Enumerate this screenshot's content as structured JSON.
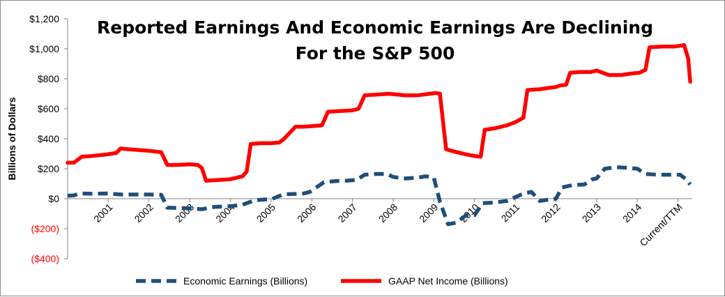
{
  "chart_data": {
    "type": "line",
    "title_lines": [
      "Reported Earnings And Economic Earnings Are Declining",
      "For the S&P 500"
    ],
    "ylabel": "Billions of Dollars",
    "xlabel": "",
    "ylim": [
      -400,
      1200
    ],
    "y_ticks": [
      {
        "value": 1200,
        "label": "$1,200"
      },
      {
        "value": 1000,
        "label": "$1,000"
      },
      {
        "value": 800,
        "label": "$800"
      },
      {
        "value": 600,
        "label": "$600"
      },
      {
        "value": 400,
        "label": "$400"
      },
      {
        "value": 200,
        "label": "$200"
      },
      {
        "value": 0,
        "label": "$0"
      },
      {
        "value": -200,
        "label": "($200)"
      },
      {
        "value": -400,
        "label": "($400)"
      }
    ],
    "negative_tick_color": "#ff0000",
    "positive_tick_color": "#000000",
    "xlim": [
      2000.0,
      2015.35
    ],
    "x_ticks": [
      {
        "value": 2001.0,
        "label": "2001"
      },
      {
        "value": 2002.0,
        "label": "2002"
      },
      {
        "value": 2003.0,
        "label": "2003"
      },
      {
        "value": 2004.0,
        "label": "2004"
      },
      {
        "value": 2005.0,
        "label": "2005"
      },
      {
        "value": 2006.0,
        "label": "2006"
      },
      {
        "value": 2007.0,
        "label": "2007"
      },
      {
        "value": 2008.0,
        "label": "2008"
      },
      {
        "value": 2009.0,
        "label": "2009"
      },
      {
        "value": 2010.0,
        "label": "2010"
      },
      {
        "value": 2011.0,
        "label": "2011"
      },
      {
        "value": 2012.0,
        "label": "2012"
      },
      {
        "value": 2013.0,
        "label": "2013"
      },
      {
        "value": 2014.0,
        "label": "2014"
      },
      {
        "value": 2015.0,
        "label": "Current/TTM"
      }
    ],
    "grid": false,
    "legend_position": "bottom",
    "series": [
      {
        "name": "Economic Earnings (Billions)",
        "color": "#1f4e79",
        "style": "dashed",
        "x": [
          2000.0,
          2000.15,
          2000.3,
          2000.6,
          2001.0,
          2001.3,
          2001.7,
          2002.0,
          2002.3,
          2002.45,
          2002.7,
          2003.0,
          2003.3,
          2003.6,
          2004.0,
          2004.3,
          2004.6,
          2004.85,
          2005.0,
          2005.3,
          2005.6,
          2005.8,
          2005.95,
          2006.3,
          2006.6,
          2006.85,
          2007.1,
          2007.3,
          2007.6,
          2007.85,
          2008.0,
          2008.3,
          2008.6,
          2008.8,
          2009.0,
          2009.15,
          2009.35,
          2009.55,
          2009.8,
          2010.0,
          2010.2,
          2010.5,
          2010.8,
          2011.0,
          2011.2,
          2011.4,
          2011.6,
          2011.85,
          2012.0,
          2012.15,
          2012.4,
          2012.7,
          2012.9,
          2013.0,
          2013.2,
          2013.5,
          2013.8,
          2014.0,
          2014.2,
          2014.5,
          2014.8,
          2015.05,
          2015.2,
          2015.3
        ],
        "values": [
          20,
          22,
          35,
          33,
          35,
          28,
          28,
          28,
          26,
          -60,
          -62,
          -65,
          -70,
          -55,
          -50,
          -40,
          -10,
          -5,
          -5,
          30,
          32,
          35,
          45,
          110,
          118,
          120,
          125,
          160,
          165,
          165,
          145,
          135,
          140,
          150,
          140,
          -20,
          -170,
          -160,
          -110,
          -110,
          -30,
          -25,
          -15,
          10,
          35,
          45,
          -15,
          -5,
          0,
          75,
          90,
          95,
          130,
          135,
          200,
          210,
          205,
          200,
          165,
          160,
          160,
          160,
          130,
          95
        ]
      },
      {
        "name": "GAAP Net Income (Billions)",
        "color": "#ff0000",
        "style": "solid",
        "x": [
          2000.0,
          2000.15,
          2000.35,
          2000.6,
          2000.95,
          2001.2,
          2001.3,
          2001.5,
          2002.0,
          2002.15,
          2002.3,
          2002.45,
          2002.7,
          2003.0,
          2003.2,
          2003.3,
          2003.4,
          2003.7,
          2004.0,
          2004.3,
          2004.4,
          2004.5,
          2004.75,
          2005.0,
          2005.2,
          2005.3,
          2005.6,
          2005.8,
          2006.05,
          2006.25,
          2006.4,
          2006.7,
          2007.0,
          2007.15,
          2007.3,
          2007.6,
          2007.9,
          2008.1,
          2008.3,
          2008.6,
          2008.9,
          2009.05,
          2009.15,
          2009.3,
          2009.5,
          2009.8,
          2010.0,
          2010.15,
          2010.25,
          2010.5,
          2010.8,
          2011.0,
          2011.1,
          2011.2,
          2011.3,
          2011.6,
          2011.85,
          2012.0,
          2012.1,
          2012.25,
          2012.35,
          2012.6,
          2012.85,
          2013.0,
          2013.15,
          2013.3,
          2013.6,
          2013.85,
          2014.05,
          2014.2,
          2014.3,
          2014.6,
          2014.9,
          2015.05,
          2015.15,
          2015.25,
          2015.3
        ],
        "values": [
          240,
          240,
          280,
          285,
          295,
          305,
          335,
          330,
          320,
          315,
          310,
          225,
          225,
          230,
          225,
          205,
          120,
          125,
          130,
          150,
          180,
          365,
          370,
          370,
          375,
          395,
          480,
          480,
          485,
          490,
          580,
          585,
          590,
          600,
          690,
          695,
          700,
          695,
          690,
          690,
          700,
          705,
          700,
          330,
          315,
          295,
          285,
          280,
          460,
          470,
          490,
          510,
          525,
          540,
          725,
          730,
          740,
          745,
          755,
          760,
          840,
          845,
          845,
          855,
          840,
          825,
          825,
          835,
          840,
          860,
          1010,
          1015,
          1015,
          1020,
          1025,
          935,
          780
        ]
      }
    ]
  }
}
